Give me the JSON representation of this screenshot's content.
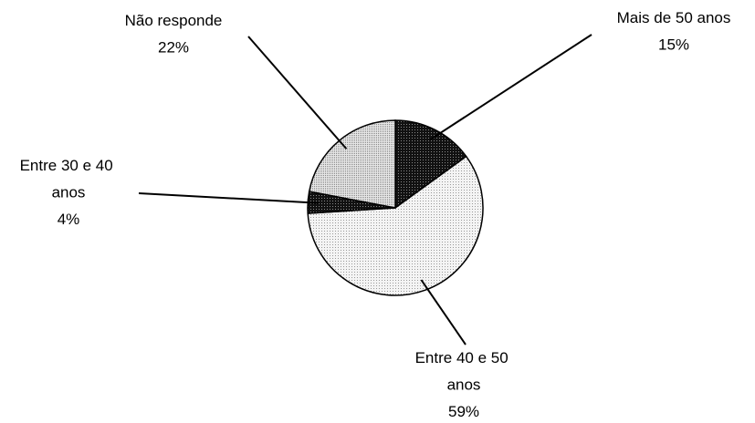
{
  "chart_data": {
    "type": "pie",
    "categories": [
      "Mais de 50 anos",
      "Entre 40 e 50 anos",
      "Entre 30 e 40 anos",
      "Não responde"
    ],
    "values": [
      15,
      59,
      4,
      22
    ],
    "value_labels": [
      "15%",
      "59%",
      "4%",
      "22%"
    ],
    "colors": [
      "#1a1a1a",
      "#efefef",
      "#1a1a1a",
      "#d9d9d9"
    ]
  }
}
